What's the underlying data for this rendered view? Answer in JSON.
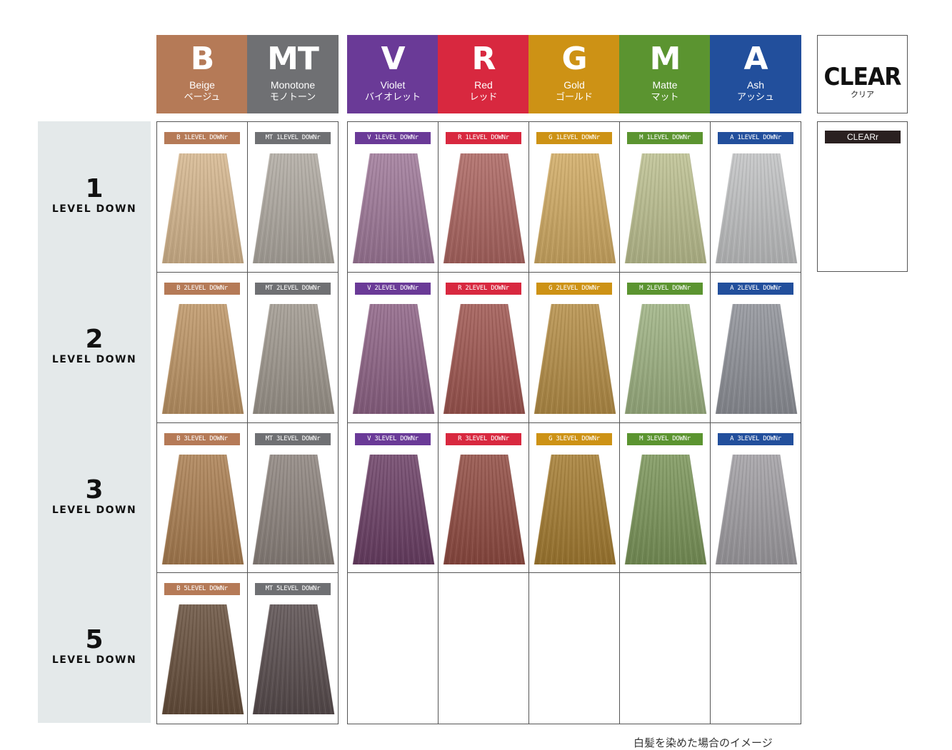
{
  "headers": [
    {
      "code": "B",
      "en": "Beige",
      "jp": "ベージュ",
      "color": "#b57a57"
    },
    {
      "code": "MT",
      "en": "Monotone",
      "jp": "モノトーン",
      "color": "#6f7073"
    },
    {
      "code": "V",
      "en": "Violet",
      "jp": "バイオレット",
      "color": "#6a3a97"
    },
    {
      "code": "R",
      "en": "Red",
      "jp": "レッド",
      "color": "#d8283f"
    },
    {
      "code": "G",
      "en": "Gold",
      "jp": "ゴールド",
      "color": "#cd9215"
    },
    {
      "code": "M",
      "en": "Matte",
      "jp": "マット",
      "color": "#5b9430"
    },
    {
      "code": "A",
      "en": "Ash",
      "jp": "アッシュ",
      "color": "#224f9c"
    }
  ],
  "clear": {
    "title": "CLEAR",
    "jp": "クリア",
    "tag": "CLEARr"
  },
  "rows": [
    {
      "num": "1",
      "label": "LEVEL DOWN"
    },
    {
      "num": "2",
      "label": "LEVEL DOWN"
    },
    {
      "num": "3",
      "label": "LEVEL DOWN"
    },
    {
      "num": "5",
      "label": "LEVEL DOWN"
    }
  ],
  "swatches": [
    [
      {
        "tag": "B 1LEVEL DOWNr",
        "color": "#c8ae8c"
      },
      {
        "tag": "MT 1LEVEL DOWNr",
        "color": "#a8a39c"
      },
      {
        "tag": "V 1LEVEL DOWNr",
        "color": "#9a7a95"
      },
      {
        "tag": "R 1LEVEL DOWNr",
        "color": "#a56a66"
      },
      {
        "tag": "G 1LEVEL DOWNr",
        "color": "#c4a468"
      },
      {
        "tag": "M 1LEVEL DOWNr",
        "color": "#b3b68e"
      },
      {
        "tag": "A 1LEVEL DOWNr",
        "color": "#b7b8b9"
      }
    ],
    [
      {
        "tag": "B 2LEVEL DOWNr",
        "color": "#b4926a"
      },
      {
        "tag": "MT 2LEVEL DOWNr",
        "color": "#9a948c"
      },
      {
        "tag": "V 2LEVEL DOWNr",
        "color": "#8c6885"
      },
      {
        "tag": "R 2LEVEL DOWNr",
        "color": "#9a5d58"
      },
      {
        "tag": "G 2LEVEL DOWNr",
        "color": "#ad8c50"
      },
      {
        "tag": "M 2LEVEL DOWNr",
        "color": "#99aa82"
      },
      {
        "tag": "A 2LEVEL DOWNr",
        "color": "#8d8f95"
      }
    ],
    [
      {
        "tag": "B 3LEVEL DOWNr",
        "color": "#a47f59"
      },
      {
        "tag": "MT 3LEVEL DOWNr",
        "color": "#8b837e"
      },
      {
        "tag": "V 3LEVEL DOWNr",
        "color": "#6f4a6a"
      },
      {
        "tag": "R 3LEVEL DOWNr",
        "color": "#8e544c"
      },
      {
        "tag": "G 3LEVEL DOWNr",
        "color": "#9f7d3e"
      },
      {
        "tag": "M 3LEVEL DOWNr",
        "color": "#7c9260"
      },
      {
        "tag": "A 3LEVEL DOWNr",
        "color": "#9c9a9e"
      }
    ],
    [
      {
        "tag": "B 5LEVEL DOWNr",
        "color": "#6b5747"
      },
      {
        "tag": "MT 5LEVEL DOWNr",
        "color": "#5f5556"
      },
      null,
      null,
      null,
      null,
      null
    ]
  ],
  "note": "白髪を染めた場合のイメージ"
}
